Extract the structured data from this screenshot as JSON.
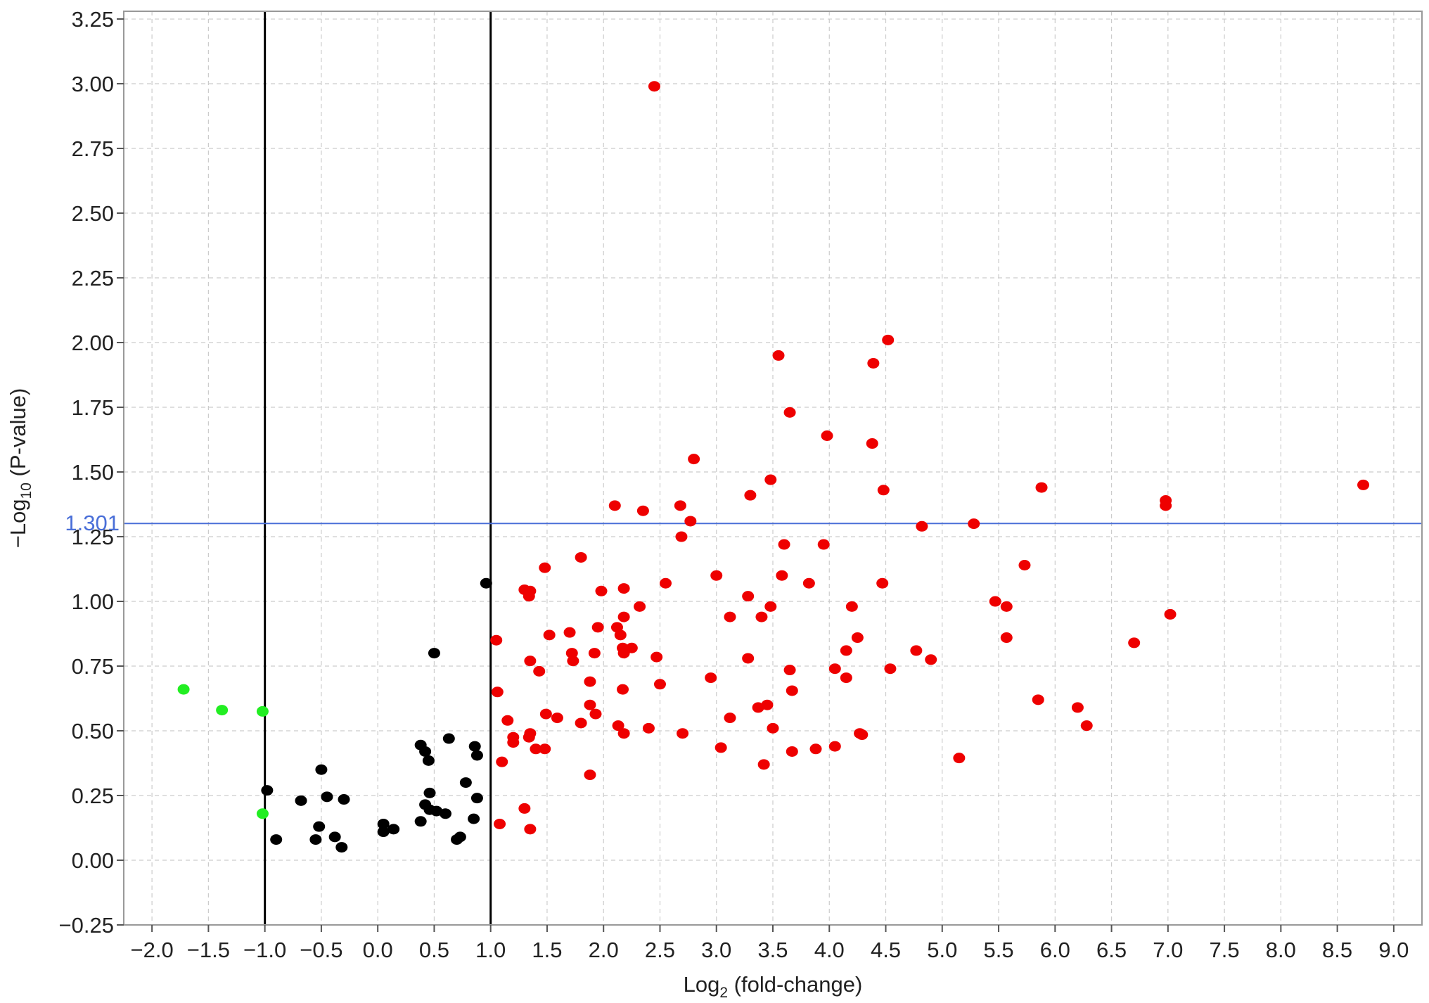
{
  "chart_data": {
    "type": "scatter",
    "xlabel_main": "Log",
    "xlabel_sub": "2",
    "xlabel_rest": " (fold-change)",
    "ylabel_main": "−Log",
    "ylabel_sub": "10",
    "ylabel_rest": " (P-value)",
    "xlim": [
      -2.25,
      9.25
    ],
    "ylim": [
      -0.25,
      3.28
    ],
    "x_ticks": [
      -2.0,
      -1.5,
      -1.0,
      -0.5,
      0.0,
      0.5,
      1.0,
      1.5,
      2.0,
      2.5,
      3.0,
      3.5,
      4.0,
      4.5,
      5.0,
      5.5,
      6.0,
      6.5,
      7.0,
      7.5,
      8.0,
      8.5,
      9.0
    ],
    "x_tick_labels": [
      "−2.0",
      "−1.5",
      "−1.0",
      "−0.5",
      "0.0",
      "0.5",
      "1.0",
      "1.5",
      "2.0",
      "2.5",
      "3.0",
      "3.5",
      "4.0",
      "4.5",
      "5.0",
      "5.5",
      "6.0",
      "6.5",
      "7.0",
      "7.5",
      "8.0",
      "8.5",
      "9.0"
    ],
    "y_ticks": [
      -0.25,
      0.0,
      0.25,
      0.5,
      0.75,
      1.0,
      1.25,
      1.5,
      1.75,
      2.0,
      2.25,
      2.5,
      2.75,
      3.0,
      3.25
    ],
    "y_tick_labels": [
      "−0.25",
      "0.00",
      "0.25",
      "0.50",
      "0.75",
      "1.00",
      "1.25",
      "1.50",
      "1.75",
      "2.00",
      "2.25",
      "2.50",
      "2.75",
      "3.00",
      "3.25"
    ],
    "grid": true,
    "vlines": [
      -1.0,
      1.0
    ],
    "hline": {
      "y": 1.301,
      "label": "1.301",
      "color": "#4a6fd8"
    },
    "colors": {
      "up": "#ee0000",
      "down": "#22ee22",
      "ns": "#000000",
      "axis": "#999999",
      "grid": "#cccccc"
    },
    "series": [
      {
        "group": "down",
        "points": [
          [
            -1.72,
            0.66
          ],
          [
            -1.38,
            0.58
          ],
          [
            -1.02,
            0.575
          ],
          [
            -1.02,
            0.18
          ]
        ]
      },
      {
        "group": "ns",
        "points": [
          [
            -0.98,
            0.27
          ],
          [
            -0.9,
            0.08
          ],
          [
            -0.68,
            0.23
          ],
          [
            -0.5,
            0.35
          ],
          [
            -0.45,
            0.245
          ],
          [
            -0.52,
            0.13
          ],
          [
            -0.55,
            0.08
          ],
          [
            -0.38,
            0.09
          ],
          [
            -0.32,
            0.05
          ],
          [
            -0.3,
            0.235
          ],
          [
            0.05,
            0.14
          ],
          [
            0.05,
            0.11
          ],
          [
            0.14,
            0.12
          ],
          [
            0.38,
            0.445
          ],
          [
            0.42,
            0.42
          ],
          [
            0.45,
            0.385
          ],
          [
            0.38,
            0.15
          ],
          [
            0.42,
            0.215
          ],
          [
            0.46,
            0.26
          ],
          [
            0.5,
            0.8
          ],
          [
            0.46,
            0.195
          ],
          [
            0.52,
            0.19
          ],
          [
            0.6,
            0.18
          ],
          [
            0.63,
            0.47
          ],
          [
            0.7,
            0.08
          ],
          [
            0.73,
            0.09
          ],
          [
            0.78,
            0.3
          ],
          [
            0.85,
            0.16
          ],
          [
            0.86,
            0.44
          ],
          [
            0.88,
            0.405
          ],
          [
            0.88,
            0.24
          ],
          [
            0.96,
            1.07
          ]
        ]
      },
      {
        "group": "up",
        "points": [
          [
            2.45,
            2.99
          ],
          [
            4.52,
            2.01
          ],
          [
            3.55,
            1.95
          ],
          [
            4.39,
            1.92
          ],
          [
            3.65,
            1.73
          ],
          [
            3.98,
            1.64
          ],
          [
            4.38,
            1.61
          ],
          [
            2.8,
            1.55
          ],
          [
            3.48,
            1.47
          ],
          [
            5.88,
            1.44
          ],
          [
            8.73,
            1.45
          ],
          [
            4.48,
            1.43
          ],
          [
            3.3,
            1.41
          ],
          [
            6.98,
            1.39
          ],
          [
            6.98,
            1.37
          ],
          [
            2.1,
            1.37
          ],
          [
            2.68,
            1.37
          ],
          [
            2.35,
            1.35
          ],
          [
            2.77,
            1.31
          ],
          [
            5.28,
            1.3
          ],
          [
            4.82,
            1.29
          ],
          [
            2.69,
            1.25
          ],
          [
            3.6,
            1.22
          ],
          [
            3.95,
            1.22
          ],
          [
            1.8,
            1.17
          ],
          [
            5.73,
            1.14
          ],
          [
            1.48,
            1.13
          ],
          [
            3.0,
            1.1
          ],
          [
            3.58,
            1.1
          ],
          [
            4.47,
            1.07
          ],
          [
            3.82,
            1.07
          ],
          [
            2.55,
            1.07
          ],
          [
            2.18,
            1.05
          ],
          [
            1.3,
            1.045
          ],
          [
            1.35,
            1.04
          ],
          [
            1.98,
            1.04
          ],
          [
            1.34,
            1.02
          ],
          [
            3.28,
            1.02
          ],
          [
            5.47,
            1.0
          ],
          [
            5.57,
            0.98
          ],
          [
            3.48,
            0.98
          ],
          [
            4.2,
            0.98
          ],
          [
            2.32,
            0.98
          ],
          [
            2.18,
            0.94
          ],
          [
            3.12,
            0.94
          ],
          [
            3.4,
            0.94
          ],
          [
            7.02,
            0.95
          ],
          [
            2.12,
            0.9
          ],
          [
            1.95,
            0.9
          ],
          [
            2.15,
            0.87
          ],
          [
            1.52,
            0.87
          ],
          [
            1.7,
            0.88
          ],
          [
            4.25,
            0.86
          ],
          [
            5.57,
            0.86
          ],
          [
            1.05,
            0.85
          ],
          [
            6.7,
            0.84
          ],
          [
            2.17,
            0.82
          ],
          [
            2.25,
            0.82
          ],
          [
            4.15,
            0.81
          ],
          [
            4.77,
            0.81
          ],
          [
            1.72,
            0.8
          ],
          [
            1.92,
            0.8
          ],
          [
            2.18,
            0.8
          ],
          [
            2.47,
            0.785
          ],
          [
            3.28,
            0.78
          ],
          [
            4.9,
            0.775
          ],
          [
            1.35,
            0.77
          ],
          [
            1.73,
            0.77
          ],
          [
            4.05,
            0.74
          ],
          [
            4.54,
            0.74
          ],
          [
            3.65,
            0.735
          ],
          [
            1.43,
            0.73
          ],
          [
            4.15,
            0.705
          ],
          [
            2.95,
            0.705
          ],
          [
            1.88,
            0.69
          ],
          [
            2.5,
            0.68
          ],
          [
            2.17,
            0.66
          ],
          [
            1.06,
            0.65
          ],
          [
            3.67,
            0.655
          ],
          [
            5.85,
            0.62
          ],
          [
            1.88,
            0.6
          ],
          [
            3.45,
            0.6
          ],
          [
            3.37,
            0.59
          ],
          [
            6.2,
            0.59
          ],
          [
            1.49,
            0.565
          ],
          [
            1.93,
            0.565
          ],
          [
            1.59,
            0.55
          ],
          [
            3.12,
            0.55
          ],
          [
            1.15,
            0.54
          ],
          [
            1.8,
            0.53
          ],
          [
            2.13,
            0.52
          ],
          [
            6.28,
            0.52
          ],
          [
            2.4,
            0.51
          ],
          [
            3.5,
            0.51
          ],
          [
            4.27,
            0.49
          ],
          [
            4.29,
            0.485
          ],
          [
            2.18,
            0.49
          ],
          [
            2.7,
            0.49
          ],
          [
            1.35,
            0.49
          ],
          [
            1.2,
            0.475
          ],
          [
            1.34,
            0.475
          ],
          [
            1.2,
            0.455
          ],
          [
            1.4,
            0.43
          ],
          [
            1.48,
            0.43
          ],
          [
            3.04,
            0.435
          ],
          [
            3.88,
            0.43
          ],
          [
            4.05,
            0.44
          ],
          [
            3.67,
            0.42
          ],
          [
            5.15,
            0.395
          ],
          [
            1.1,
            0.38
          ],
          [
            3.42,
            0.37
          ],
          [
            1.88,
            0.33
          ],
          [
            1.3,
            0.2
          ],
          [
            1.08,
            0.14
          ],
          [
            1.35,
            0.12
          ]
        ]
      }
    ]
  }
}
